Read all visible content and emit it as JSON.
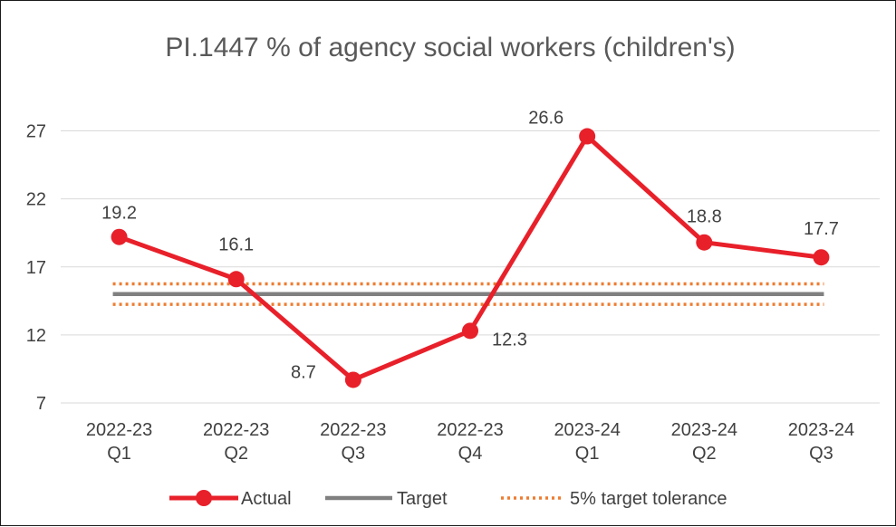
{
  "chart_data": {
    "type": "line",
    "title": "PI.1447 % of agency social workers (children's)",
    "xlabel": "",
    "ylabel": "",
    "categories": [
      [
        "2022-23",
        "Q1"
      ],
      [
        "2022-23",
        "Q2"
      ],
      [
        "2022-23",
        "Q3"
      ],
      [
        "2022-23",
        "Q4"
      ],
      [
        "2023-24",
        "Q1"
      ],
      [
        "2023-24",
        "Q2"
      ],
      [
        "2023-24",
        "Q3"
      ]
    ],
    "yticks": [
      7,
      12,
      17,
      22,
      27
    ],
    "ylim": [
      7,
      30
    ],
    "grid": true,
    "legend_position": "bottom",
    "series": [
      {
        "name": "Actual",
        "style": "line-with-markers",
        "color": "#e8202a",
        "values": [
          19.2,
          16.1,
          8.7,
          12.3,
          26.6,
          18.8,
          17.7
        ],
        "labels": [
          "19.2",
          "16.1",
          "8.7",
          "12.3",
          "26.6",
          "18.8",
          "17.7"
        ]
      },
      {
        "name": "Target",
        "style": "solid",
        "color": "#808080",
        "values": [
          15,
          15,
          15,
          15,
          15,
          15,
          15
        ]
      },
      {
        "name": "5% target tolerance",
        "style": "dotted",
        "color": "#ed7d31",
        "values_upper": [
          15.75,
          15.75,
          15.75,
          15.75,
          15.75,
          15.75,
          15.75
        ],
        "values_lower": [
          14.25,
          14.25,
          14.25,
          14.25,
          14.25,
          14.25,
          14.25
        ]
      }
    ]
  }
}
